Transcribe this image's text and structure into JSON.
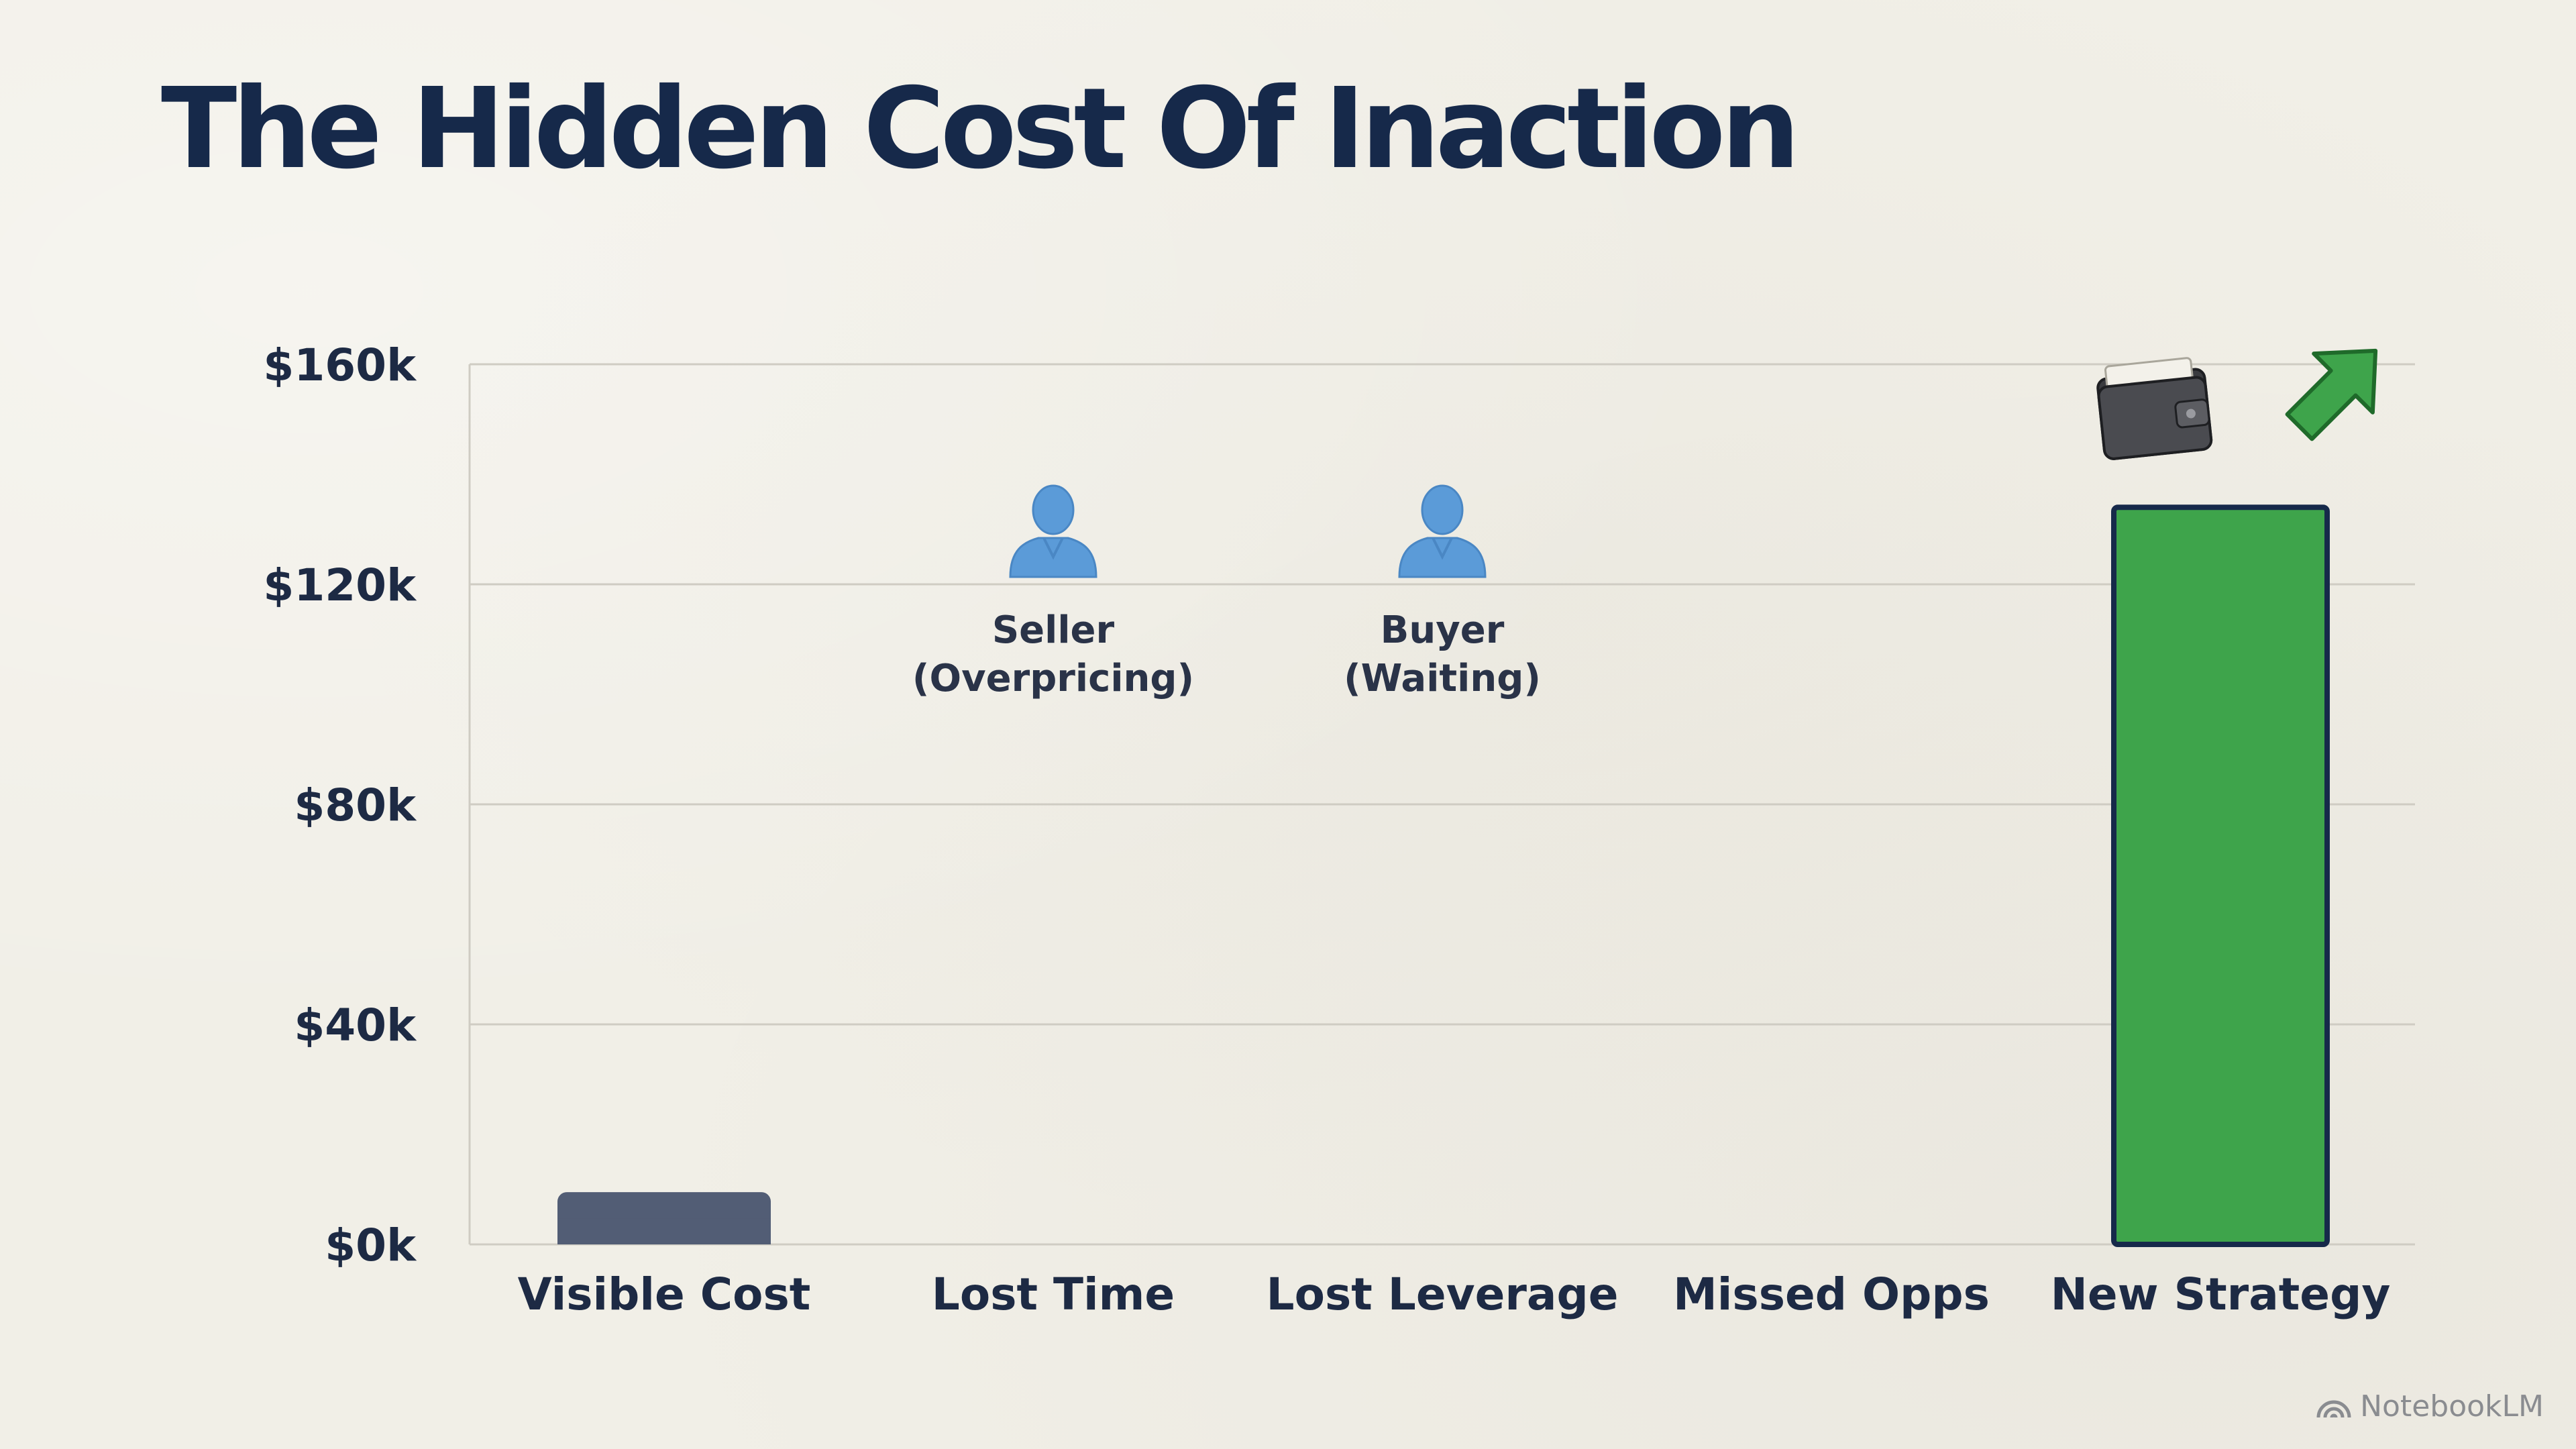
{
  "title": "The Hidden Cost Of Inaction",
  "brand": {
    "name": "NotebookLM",
    "icon": "notebooklm-logo-icon"
  },
  "colors": {
    "background": "#f1efe7",
    "title": "#16294a",
    "visible_cost_bar": "#525d75",
    "new_strategy_bar": "#3ea44b",
    "new_strategy_outline": "#16294a",
    "person_icon": "#5b9bd8",
    "gridline": "#cfccc3"
  },
  "chart_data": {
    "type": "bar",
    "title": "The Hidden Cost Of Inaction",
    "xlabel": "",
    "ylabel": "",
    "ylim": [
      0,
      160000
    ],
    "yticks": [
      0,
      40000,
      80000,
      120000,
      160000
    ],
    "ytick_labels": [
      "$0k",
      "$40k",
      "$80k",
      "$120k",
      "$160k"
    ],
    "grid": true,
    "categories": [
      "Visible Cost",
      "Lost Time",
      "Lost Leverage",
      "Missed Opps",
      "New Strategy"
    ],
    "values": [
      9500,
      null,
      null,
      null,
      134000
    ],
    "annotations": [
      {
        "category": "Lost Time",
        "icon": "person-icon",
        "lines": [
          "Seller",
          "(Overpricing)"
        ]
      },
      {
        "category": "Lost Leverage",
        "icon": "person-icon",
        "lines": [
          "Buyer",
          "(Waiting)"
        ]
      },
      {
        "category": "New Strategy",
        "icons": [
          "wallet-icon",
          "up-arrow-icon"
        ]
      }
    ]
  }
}
